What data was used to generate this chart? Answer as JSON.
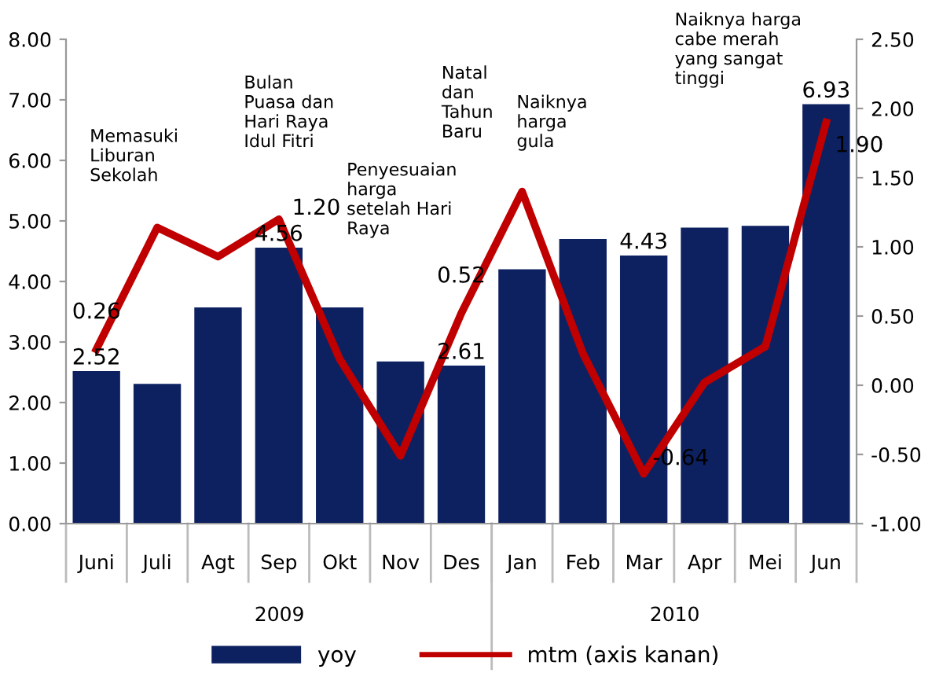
{
  "chart_data": {
    "type": "bar",
    "categories": [
      "Juni",
      "Juli",
      "Agt",
      "Sep",
      "Okt",
      "Nov",
      "Des",
      "Jan",
      "Feb",
      "Mar",
      "Apr",
      "Mei",
      "Jun"
    ],
    "series": [
      {
        "name": "yoy",
        "color": "#0d2161",
        "values": [
          2.52,
          2.31,
          3.57,
          4.56,
          3.57,
          2.68,
          2.61,
          4.2,
          4.7,
          4.43,
          4.89,
          4.92,
          6.93
        ],
        "value_labels": [
          "2.52",
          null,
          null,
          "4.56",
          null,
          null,
          "2.61",
          null,
          null,
          "4.43",
          null,
          null,
          "6.93"
        ]
      },
      {
        "name": "mtm (axis kanan)",
        "type": "line",
        "axis": "y2",
        "color": "#c00000",
        "values": [
          0.26,
          1.14,
          0.93,
          1.2,
          0.19,
          -0.51,
          0.52,
          1.4,
          0.23,
          -0.64,
          0.02,
          0.28,
          1.9
        ],
        "value_labels": [
          "0.26",
          null,
          null,
          "1.20",
          null,
          null,
          "0.52",
          null,
          null,
          "-0.64",
          null,
          null,
          "1.90"
        ]
      }
    ],
    "ylim": [
      0,
      8
    ],
    "yticks": [
      {
        "value": 0,
        "label": "0.00"
      },
      {
        "value": 1,
        "label": "1.00"
      },
      {
        "value": 2,
        "label": "2.00"
      },
      {
        "value": 3,
        "label": "3.00"
      },
      {
        "value": 4,
        "label": "4.00"
      },
      {
        "value": 5,
        "label": "5.00"
      },
      {
        "value": 6,
        "label": "6.00"
      },
      {
        "value": 7,
        "label": "7.00"
      },
      {
        "value": 8,
        "label": "8.00"
      }
    ],
    "y2lim": [
      -1,
      2.5
    ],
    "y2ticks": [
      {
        "value": -1,
        "label": "-1.00"
      },
      {
        "value": -0.5,
        "label": "-0.50"
      },
      {
        "value": 0,
        "label": "0.00"
      },
      {
        "value": 0.5,
        "label": "0.50"
      },
      {
        "value": 1,
        "label": "1.00"
      },
      {
        "value": 1.5,
        "label": "1.50"
      },
      {
        "value": 2,
        "label": "2.00"
      },
      {
        "value": 2.5,
        "label": "2.50"
      }
    ],
    "annotations": [
      "Memasuki\nLiburan\nSekolah",
      "Bulan\nPuasa dan\nHari Raya\nIdul Fitri",
      "Penyesuaian\nharga\nsetelah Hari\nRaya",
      "Natal\ndan\nTahun\nBaru",
      "Naiknya\nharga\ngula",
      "Naiknya harga\ncabe merah\nyang sangat\ntinggi",
      "2009",
      "2010"
    ],
    "grid": false,
    "legend": "bottom"
  }
}
